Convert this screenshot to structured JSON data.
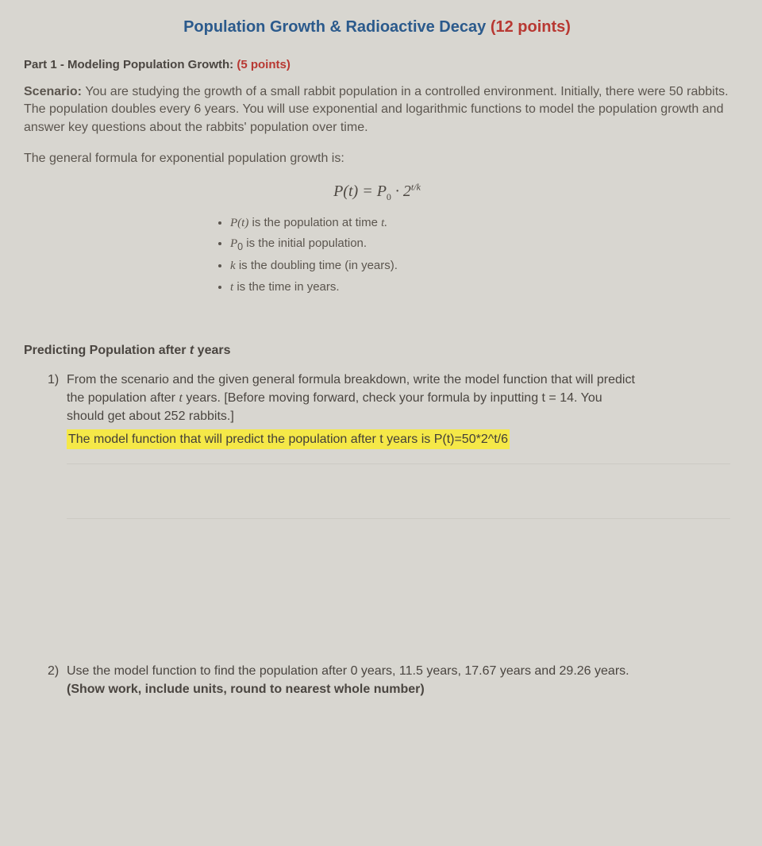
{
  "header": {
    "title_main": "Population Growth & Radioactive Decay ",
    "title_points": "(12 points)"
  },
  "part1": {
    "heading_main": "Part 1 - Modeling Population Growth: ",
    "heading_points": "(5 points)"
  },
  "scenario": {
    "label": "Scenario: ",
    "text": "You are studying the growth of a small rabbit population in a controlled environment. Initially, there were 50 rabbits. The population doubles every 6 years. You will use exponential and logarithmic functions to model the population growth and answer key questions about the rabbits' population over time."
  },
  "formula_intro": "The general formula for exponential population growth is:",
  "formula": {
    "lhs": "P(t)",
    "eq": " = ",
    "p0": "P",
    "p0_sub": "0",
    "dot": " · 2",
    "exp": "t/k"
  },
  "bullets": {
    "b1_var": "P(t)",
    "b1_text": " is the population at time ",
    "b1_var2": "t.",
    "b2_var": "P",
    "b2_sub": "0",
    "b2_text": " is the initial population.",
    "b3_var": "k",
    "b3_text": " is the doubling time (in years).",
    "b4_var": "t",
    "b4_text": " is the time in years."
  },
  "section": {
    "title_pre": "Predicting Population after ",
    "title_var": "t",
    "title_post": " years"
  },
  "q1": {
    "num": "1)",
    "line1": "From the scenario and the given general formula breakdown, write the model function that will predict",
    "line2": "the population after ",
    "line2_var": "t",
    "line2_post": " years. [Before moving forward, check your formula by inputting t = 14. You",
    "line3": "should get about 252 rabbits.]",
    "answer": "The model function that will predict the population after t years is P(t)=50*2^t/6"
  },
  "q2": {
    "num": "2)",
    "line1": "Use the model function to find the population after 0 years, 11.5 years, 17.67 years and 29.26 years.",
    "line2": "(Show work, include units, round to nearest whole number)"
  },
  "colors": {
    "bg": "#d8d6d0",
    "blue": "#2b5a8c",
    "red": "#b83832",
    "highlight": "#f5e848",
    "text": "#4a4540"
  }
}
